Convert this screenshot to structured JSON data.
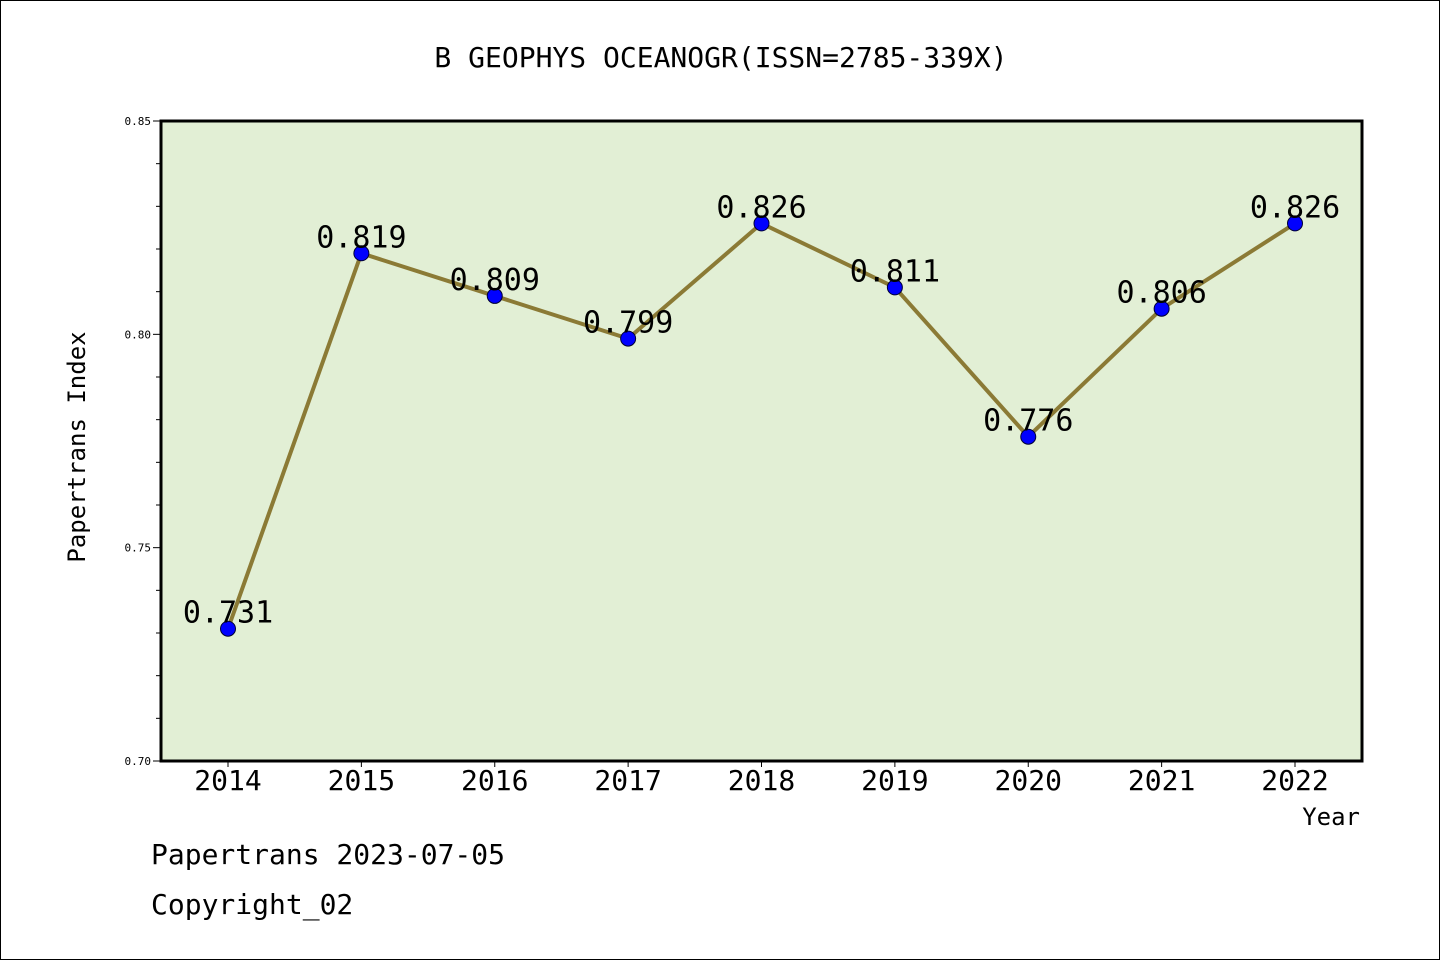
{
  "chart_data": {
    "type": "line",
    "title": "B GEOPHYS OCEANOGR(ISSN=2785-339X)",
    "xlabel": "Year",
    "ylabel": "Papertrans Index",
    "ylim": [
      0.7,
      0.85
    ],
    "y_ticks": [
      "0.70",
      "0.75",
      "0.80",
      "0.85"
    ],
    "categories": [
      "2014",
      "2015",
      "2016",
      "2017",
      "2018",
      "2019",
      "2020",
      "2021",
      "2022"
    ],
    "series": [
      {
        "values": [
          0.731,
          0.819,
          0.809,
          0.799,
          0.826,
          0.811,
          0.776,
          0.806,
          0.826
        ],
        "labels": [
          "0.731",
          "0.819",
          "0.809",
          "0.799",
          "0.826",
          "0.811",
          "0.776",
          "0.806",
          "0.826"
        ]
      }
    ],
    "grid": false,
    "colors": {
      "plot_background": "#e2efd5",
      "line": "#8b7a35",
      "marker": "#0000ff"
    }
  },
  "footer": {
    "line1": "Papertrans 2023-07-05",
    "line2": "Copyright_02"
  }
}
